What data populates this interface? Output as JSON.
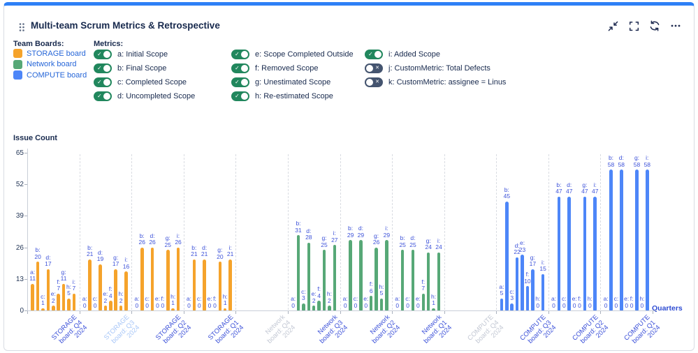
{
  "header": {
    "title": "Multi-team Scrum Metrics & Retrospective",
    "accent_color": "#2e80f6",
    "icons": [
      "drag-handle",
      "collapse",
      "fullscreen",
      "refresh",
      "more"
    ]
  },
  "legend": {
    "title": "Team Boards:",
    "boards": [
      {
        "name": "STORAGE board",
        "color": "#f5a32b"
      },
      {
        "name": "Network board",
        "color": "#57a877"
      },
      {
        "name": "COMPUTE board",
        "color": "#4d86f8"
      }
    ]
  },
  "metrics_panel": {
    "title": "Metrics:",
    "toggle_on_color": "#21875d",
    "toggle_off_color": "#44546f",
    "columns": [
      [
        {
          "label": "a: Initial Scope",
          "on": true
        },
        {
          "label": "b: Final Scope",
          "on": true
        },
        {
          "label": "c: Completed Scope",
          "on": true
        },
        {
          "label": "d: Uncompleted Scope",
          "on": true
        }
      ],
      [
        {
          "label": "e: Scope Completed Outside",
          "on": true
        },
        {
          "label": "f: Removed Scope",
          "on": true
        },
        {
          "label": "g: Unestimated Scope",
          "on": true
        },
        {
          "label": "h: Re-estimated Scope",
          "on": true
        }
      ],
      [
        {
          "label": "i: Added Scope",
          "on": true
        },
        {
          "label": "j: CustomMetric: Total Defects",
          "on": false
        },
        {
          "label": "k: CustomMetric: assignee = Linus",
          "on": false
        }
      ]
    ]
  },
  "chart_data": {
    "type": "bar",
    "ylabel": "Issue Count",
    "xlabel": "Quarters",
    "ylim": [
      0,
      65
    ],
    "yticks": [
      0,
      13,
      26,
      39,
      52,
      65
    ],
    "grid": "dashed-group-separators",
    "metric_letters": [
      "a",
      "b",
      "c",
      "d",
      "e",
      "f",
      "g",
      "h",
      "i"
    ],
    "value_label_color": "#3d52d9",
    "xlabel_colors": {
      "normal": "#3d52d9",
      "dimmed": "#a8c7f8",
      "empty": "#c3c8d4"
    },
    "groups": [
      {
        "board": "STORAGE board",
        "quarter": "Q4 2024",
        "label_lines": [
          "STORAGE",
          "board: Q4",
          "2024"
        ],
        "label_state": "normal",
        "values": [
          11,
          20,
          1,
          17,
          2,
          7,
          11,
          5,
          7
        ]
      },
      {
        "board": "STORAGE board",
        "quarter": "Q3 2024",
        "label_lines": [
          "STORAGE",
          "board: Q3",
          "2024"
        ],
        "label_state": "dimmed",
        "values": [
          0,
          21,
          0,
          19,
          2,
          4,
          17,
          2,
          16
        ]
      },
      {
        "board": "STORAGE board",
        "quarter": "Q2 2024",
        "label_lines": [
          "STORAGE",
          "board: Q2",
          "2024"
        ],
        "label_state": "normal",
        "values": [
          0,
          26,
          0,
          26,
          0,
          0,
          25,
          1,
          26
        ]
      },
      {
        "board": "STORAGE board",
        "quarter": "Q1 2024",
        "label_lines": [
          "STORAGE",
          "board: Q1",
          "2024"
        ],
        "label_state": "normal",
        "values": [
          0,
          21,
          0,
          21,
          0,
          0,
          20,
          1,
          21
        ]
      },
      {
        "board": "Network board",
        "quarter": "Q4 2024",
        "label_lines": [
          "Network",
          "board: Q4",
          "2024"
        ],
        "label_state": "empty",
        "values": null
      },
      {
        "board": "Network board",
        "quarter": "Q3 2024",
        "label_lines": [
          "Network",
          "board: Q3",
          "2024"
        ],
        "label_state": "normal",
        "values": [
          0,
          31,
          3,
          28,
          2,
          4,
          25,
          2,
          27
        ]
      },
      {
        "board": "Network board",
        "quarter": "Q2 2024",
        "label_lines": [
          "Network",
          "board: Q2",
          "2024"
        ],
        "label_state": "normal",
        "values": [
          0,
          29,
          0,
          29,
          0,
          6,
          26,
          5,
          29
        ]
      },
      {
        "board": "Network board",
        "quarter": "Q1 2024",
        "label_lines": [
          "Network",
          "board: Q1",
          "2024"
        ],
        "label_state": "normal",
        "values": [
          0,
          25,
          0,
          25,
          0,
          7,
          24,
          1,
          24
        ]
      },
      {
        "board": "COMPUTE board",
        "quarter": "Q4 2024",
        "label_lines": [
          "COMPUTE",
          "board: Q4",
          "2024"
        ],
        "label_state": "empty",
        "values": null
      },
      {
        "board": "COMPUTE board",
        "quarter": "Q3 2024",
        "label_lines": [
          "COMPUTE",
          "board: Q3",
          "2024"
        ],
        "label_state": "normal",
        "values": [
          5,
          45,
          3,
          22,
          23,
          10,
          17,
          0,
          15
        ]
      },
      {
        "board": "COMPUTE board",
        "quarter": "Q2 2024",
        "label_lines": [
          "COMPUTE",
          "board: Q2",
          "2024"
        ],
        "label_state": "normal",
        "values": [
          0,
          47,
          0,
          47,
          0,
          0,
          47,
          0,
          47
        ]
      },
      {
        "board": "COMPUTE board",
        "quarter": "Q1 2024",
        "label_lines": [
          "COMPUTE",
          "board: Q1",
          "2024"
        ],
        "label_state": "normal",
        "values": [
          0,
          58,
          0,
          58,
          0,
          0,
          58,
          0,
          58
        ]
      }
    ]
  }
}
